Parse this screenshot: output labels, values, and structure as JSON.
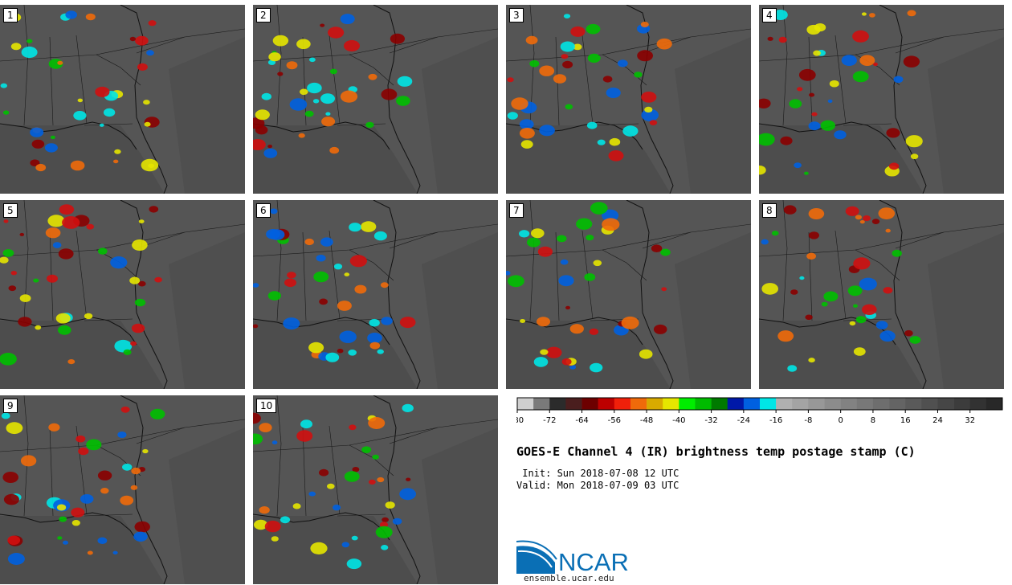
{
  "panels": [
    {
      "label": "1"
    },
    {
      "label": "2"
    },
    {
      "label": "3"
    },
    {
      "label": "4"
    },
    {
      "label": "5"
    },
    {
      "label": "6"
    },
    {
      "label": "7"
    },
    {
      "label": "8"
    },
    {
      "label": "9"
    },
    {
      "label": "10"
    }
  ],
  "title": "GOES-E Channel 4 (IR) brightness temp postage stamp (C)",
  "init": " Init: Sun 2018-07-08 12 UTC",
  "valid": "Valid: Mon 2018-07-09 03 UTC",
  "colorbar": {
    "colors": [
      "#cfcfcf",
      "#7a7a7a",
      "#2b2b2b",
      "#4a1e1e",
      "#6d0000",
      "#bd0000",
      "#f0200a",
      "#f06a0a",
      "#d8aa00",
      "#e6e600",
      "#00ee00",
      "#00bb00",
      "#007a00",
      "#0018a8",
      "#0060e0",
      "#00e6e6",
      "#b0b0b0",
      "#a4a4a4",
      "#989898",
      "#8c8c8c",
      "#828282",
      "#787878",
      "#6e6e6e",
      "#646464",
      "#5a5a5a",
      "#505050",
      "#464646",
      "#3c3c3c",
      "#323232",
      "#282828"
    ],
    "ticks": [
      "-80",
      "-72",
      "-64",
      "-56",
      "-48",
      "-40",
      "-32",
      "-24",
      "-16",
      "-8",
      "0",
      "8",
      "16",
      "24",
      "32"
    ]
  },
  "logo": {
    "text": "NCAR",
    "url": "ensemble.ucar.edu",
    "color": "#0a6fb5"
  }
}
